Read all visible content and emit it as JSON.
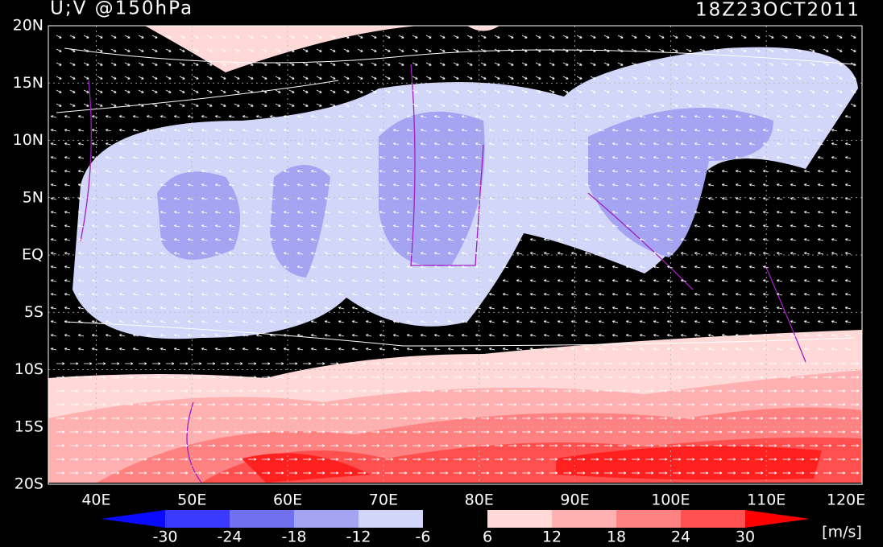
{
  "header": {
    "title": "U;V @150hPa",
    "valid_time": "18Z23OCT2011"
  },
  "map": {
    "lat_labels": [
      "20N",
      "15N",
      "10N",
      "5N",
      "EQ",
      "5S",
      "10S",
      "15S",
      "20S"
    ],
    "lon_labels": [
      "40E",
      "50E",
      "60E",
      "70E",
      "80E",
      "90E",
      "100E",
      "110E",
      "120E"
    ]
  },
  "colorbar": {
    "levels": [
      -30,
      -24,
      -18,
      -12,
      -6,
      6,
      12,
      18,
      24,
      30
    ],
    "colors": [
      "#0a0aff",
      "#3a3aff",
      "#7070f0",
      "#a4a4f2",
      "#d2d6f8",
      "#000000",
      "#ffd8d8",
      "#ffb0b0",
      "#ff8282",
      "#ff5050",
      "#ff2020",
      "#ff0000"
    ],
    "units": "[m/s]"
  }
}
